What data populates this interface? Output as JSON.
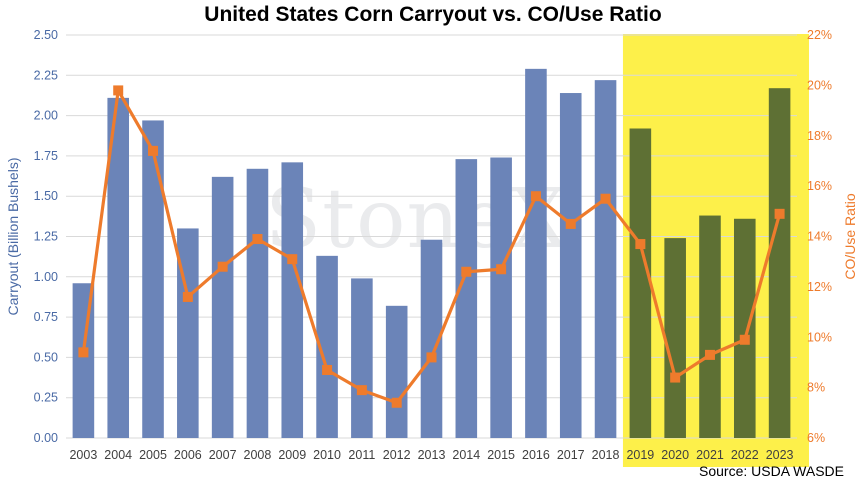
{
  "chart_data": {
    "type": "bar",
    "title": "United States Corn Carryout vs. CO/Use Ratio",
    "source": "Source: USDA WASDE",
    "watermark": "StoneX",
    "categories": [
      "2003",
      "2004",
      "2005",
      "2006",
      "2007",
      "2008",
      "2009",
      "2010",
      "2011",
      "2012",
      "2013",
      "2014",
      "2015",
      "2016",
      "2017",
      "2018",
      "2019",
      "2020",
      "2021",
      "2022",
      "2023"
    ],
    "highlighted_categories": [
      "2019",
      "2020",
      "2021",
      "2022",
      "2023"
    ],
    "series": [
      {
        "type": "bar",
        "axis": "left",
        "values": [
          0.96,
          2.11,
          1.97,
          1.3,
          1.62,
          1.67,
          1.71,
          1.13,
          0.99,
          0.82,
          1.23,
          1.73,
          1.74,
          2.29,
          2.14,
          2.22,
          1.92,
          1.24,
          1.38,
          1.36,
          2.17
        ]
      },
      {
        "type": "line",
        "axis": "right",
        "unit": "%",
        "values": [
          9.4,
          19.8,
          17.4,
          11.6,
          12.8,
          13.9,
          13.1,
          8.7,
          7.9,
          7.4,
          9.2,
          12.6,
          12.7,
          15.6,
          14.5,
          15.5,
          13.7,
          8.4,
          9.3,
          9.9,
          14.9
        ]
      }
    ],
    "ylabel_left": "Carryout (Billion Bushels)",
    "ylabel_right": "CO/Use Ratio",
    "ylim_left": [
      0,
      2.5
    ],
    "ylim_right": [
      6,
      22
    ],
    "y_ticks_left": [
      "0.00",
      "0.25",
      "0.50",
      "0.75",
      "1.00",
      "1.25",
      "1.50",
      "1.75",
      "2.00",
      "2.25",
      "2.50"
    ],
    "y_ticks_right": [
      "6%",
      "8%",
      "10%",
      "12%",
      "14%",
      "16%",
      "18%",
      "20%",
      "22%"
    ],
    "grid": true,
    "legend": "none",
    "colors": {
      "bar": "#6b84b8",
      "bar_highlighted": "#5e7034",
      "line": "#ee7b2c",
      "highlight_band": "#fdf04a",
      "left_axis_text": "#4a6aa5",
      "right_axis_text": "#ee7b2c",
      "grid": "#d9d9d9"
    }
  }
}
